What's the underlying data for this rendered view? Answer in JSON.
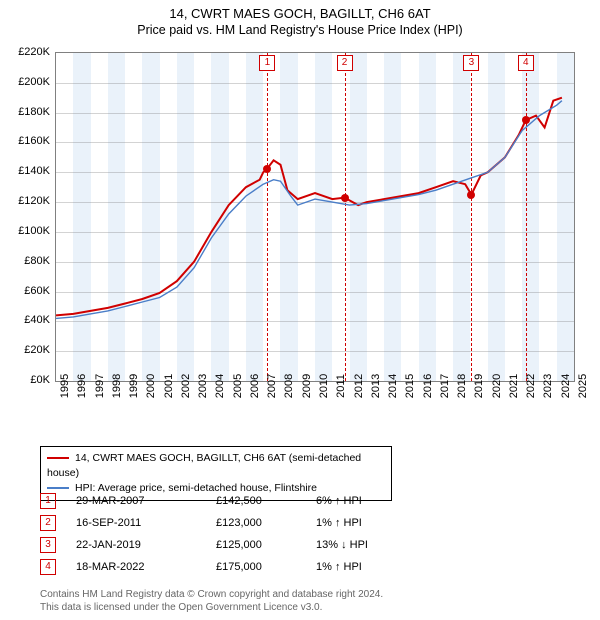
{
  "title": {
    "line1": "14, CWRT MAES GOCH, BAGILLT, CH6 6AT",
    "line2": "Price paid vs. HM Land Registry's House Price Index (HPI)"
  },
  "chart": {
    "type": "line",
    "background_color": "#ffffff",
    "band_color": "#eaf2fa",
    "grid_color": "#808080",
    "x_min": 1995,
    "x_max": 2025,
    "x_step": 1,
    "y_min": 0,
    "y_max": 220000,
    "y_step": 20000,
    "y_prefix": "£",
    "y_suffix": "K",
    "series": [
      {
        "name": "property",
        "color": "#d00000",
        "width": 2,
        "points": [
          [
            1995.0,
            44000
          ],
          [
            1996.0,
            45000
          ],
          [
            1997.0,
            47000
          ],
          [
            1998.0,
            49000
          ],
          [
            1999.0,
            52000
          ],
          [
            2000.0,
            55000
          ],
          [
            2001.0,
            59000
          ],
          [
            2002.0,
            67000
          ],
          [
            2003.0,
            80000
          ],
          [
            2004.0,
            100000
          ],
          [
            2005.0,
            118000
          ],
          [
            2006.0,
            130000
          ],
          [
            2006.8,
            135000
          ],
          [
            2007.0,
            140000
          ],
          [
            2007.24,
            142500
          ],
          [
            2007.6,
            148000
          ],
          [
            2008.0,
            145000
          ],
          [
            2008.4,
            128000
          ],
          [
            2009.0,
            122000
          ],
          [
            2010.0,
            126000
          ],
          [
            2011.0,
            122000
          ],
          [
            2011.71,
            123000
          ],
          [
            2012.5,
            118000
          ],
          [
            2013.0,
            120000
          ],
          [
            2014.0,
            122000
          ],
          [
            2015.0,
            124000
          ],
          [
            2016.0,
            126000
          ],
          [
            2017.0,
            130000
          ],
          [
            2018.0,
            134000
          ],
          [
            2018.7,
            132000
          ],
          [
            2019.06,
            125000
          ],
          [
            2019.6,
            138000
          ],
          [
            2020.0,
            140000
          ],
          [
            2021.0,
            150000
          ],
          [
            2021.8,
            165000
          ],
          [
            2022.21,
            175000
          ],
          [
            2022.8,
            178000
          ],
          [
            2023.3,
            170000
          ],
          [
            2023.8,
            188000
          ],
          [
            2024.3,
            190000
          ]
        ]
      },
      {
        "name": "hpi",
        "color": "#4a7ec8",
        "width": 1.4,
        "points": [
          [
            1995.0,
            42000
          ],
          [
            1996.0,
            43000
          ],
          [
            1997.0,
            45000
          ],
          [
            1998.0,
            47000
          ],
          [
            1999.0,
            50000
          ],
          [
            2000.0,
            53000
          ],
          [
            2001.0,
            56000
          ],
          [
            2002.0,
            63000
          ],
          [
            2003.0,
            76000
          ],
          [
            2004.0,
            96000
          ],
          [
            2005.0,
            112000
          ],
          [
            2006.0,
            124000
          ],
          [
            2007.0,
            132000
          ],
          [
            2007.6,
            135000
          ],
          [
            2008.0,
            134000
          ],
          [
            2008.6,
            124000
          ],
          [
            2009.0,
            118000
          ],
          [
            2010.0,
            122000
          ],
          [
            2011.0,
            120000
          ],
          [
            2012.0,
            118000
          ],
          [
            2013.0,
            119000
          ],
          [
            2014.0,
            121000
          ],
          [
            2015.0,
            123000
          ],
          [
            2016.0,
            125000
          ],
          [
            2017.0,
            128000
          ],
          [
            2018.0,
            132000
          ],
          [
            2019.0,
            136000
          ],
          [
            2020.0,
            140000
          ],
          [
            2021.0,
            150000
          ],
          [
            2022.0,
            168000
          ],
          [
            2023.0,
            178000
          ],
          [
            2024.0,
            185000
          ],
          [
            2024.3,
            188000
          ]
        ]
      }
    ],
    "sale_markers": [
      {
        "n": "1",
        "x": 2007.24,
        "y": 142500
      },
      {
        "n": "2",
        "x": 2011.71,
        "y": 123000
      },
      {
        "n": "3",
        "x": 2019.06,
        "y": 125000
      },
      {
        "n": "4",
        "x": 2022.21,
        "y": 175000
      }
    ]
  },
  "legend": {
    "items": [
      {
        "color": "#d00000",
        "label": "14, CWRT MAES GOCH, BAGILLT, CH6 6AT (semi-detached house)"
      },
      {
        "color": "#4a7ec8",
        "label": "HPI: Average price, semi-detached house, Flintshire"
      }
    ]
  },
  "sales": [
    {
      "n": "1",
      "date": "29-MAR-2007",
      "price": "£142,500",
      "delta": "6%",
      "dir": "up",
      "tag": "HPI"
    },
    {
      "n": "2",
      "date": "16-SEP-2011",
      "price": "£123,000",
      "delta": "1%",
      "dir": "up",
      "tag": "HPI"
    },
    {
      "n": "3",
      "date": "22-JAN-2019",
      "price": "£125,000",
      "delta": "13%",
      "dir": "down",
      "tag": "HPI"
    },
    {
      "n": "4",
      "date": "18-MAR-2022",
      "price": "£175,000",
      "delta": "1%",
      "dir": "up",
      "tag": "HPI"
    }
  ],
  "footer": {
    "line1": "Contains HM Land Registry data © Crown copyright and database right 2024.",
    "line2": "This data is licensed under the Open Government Licence v3.0."
  }
}
